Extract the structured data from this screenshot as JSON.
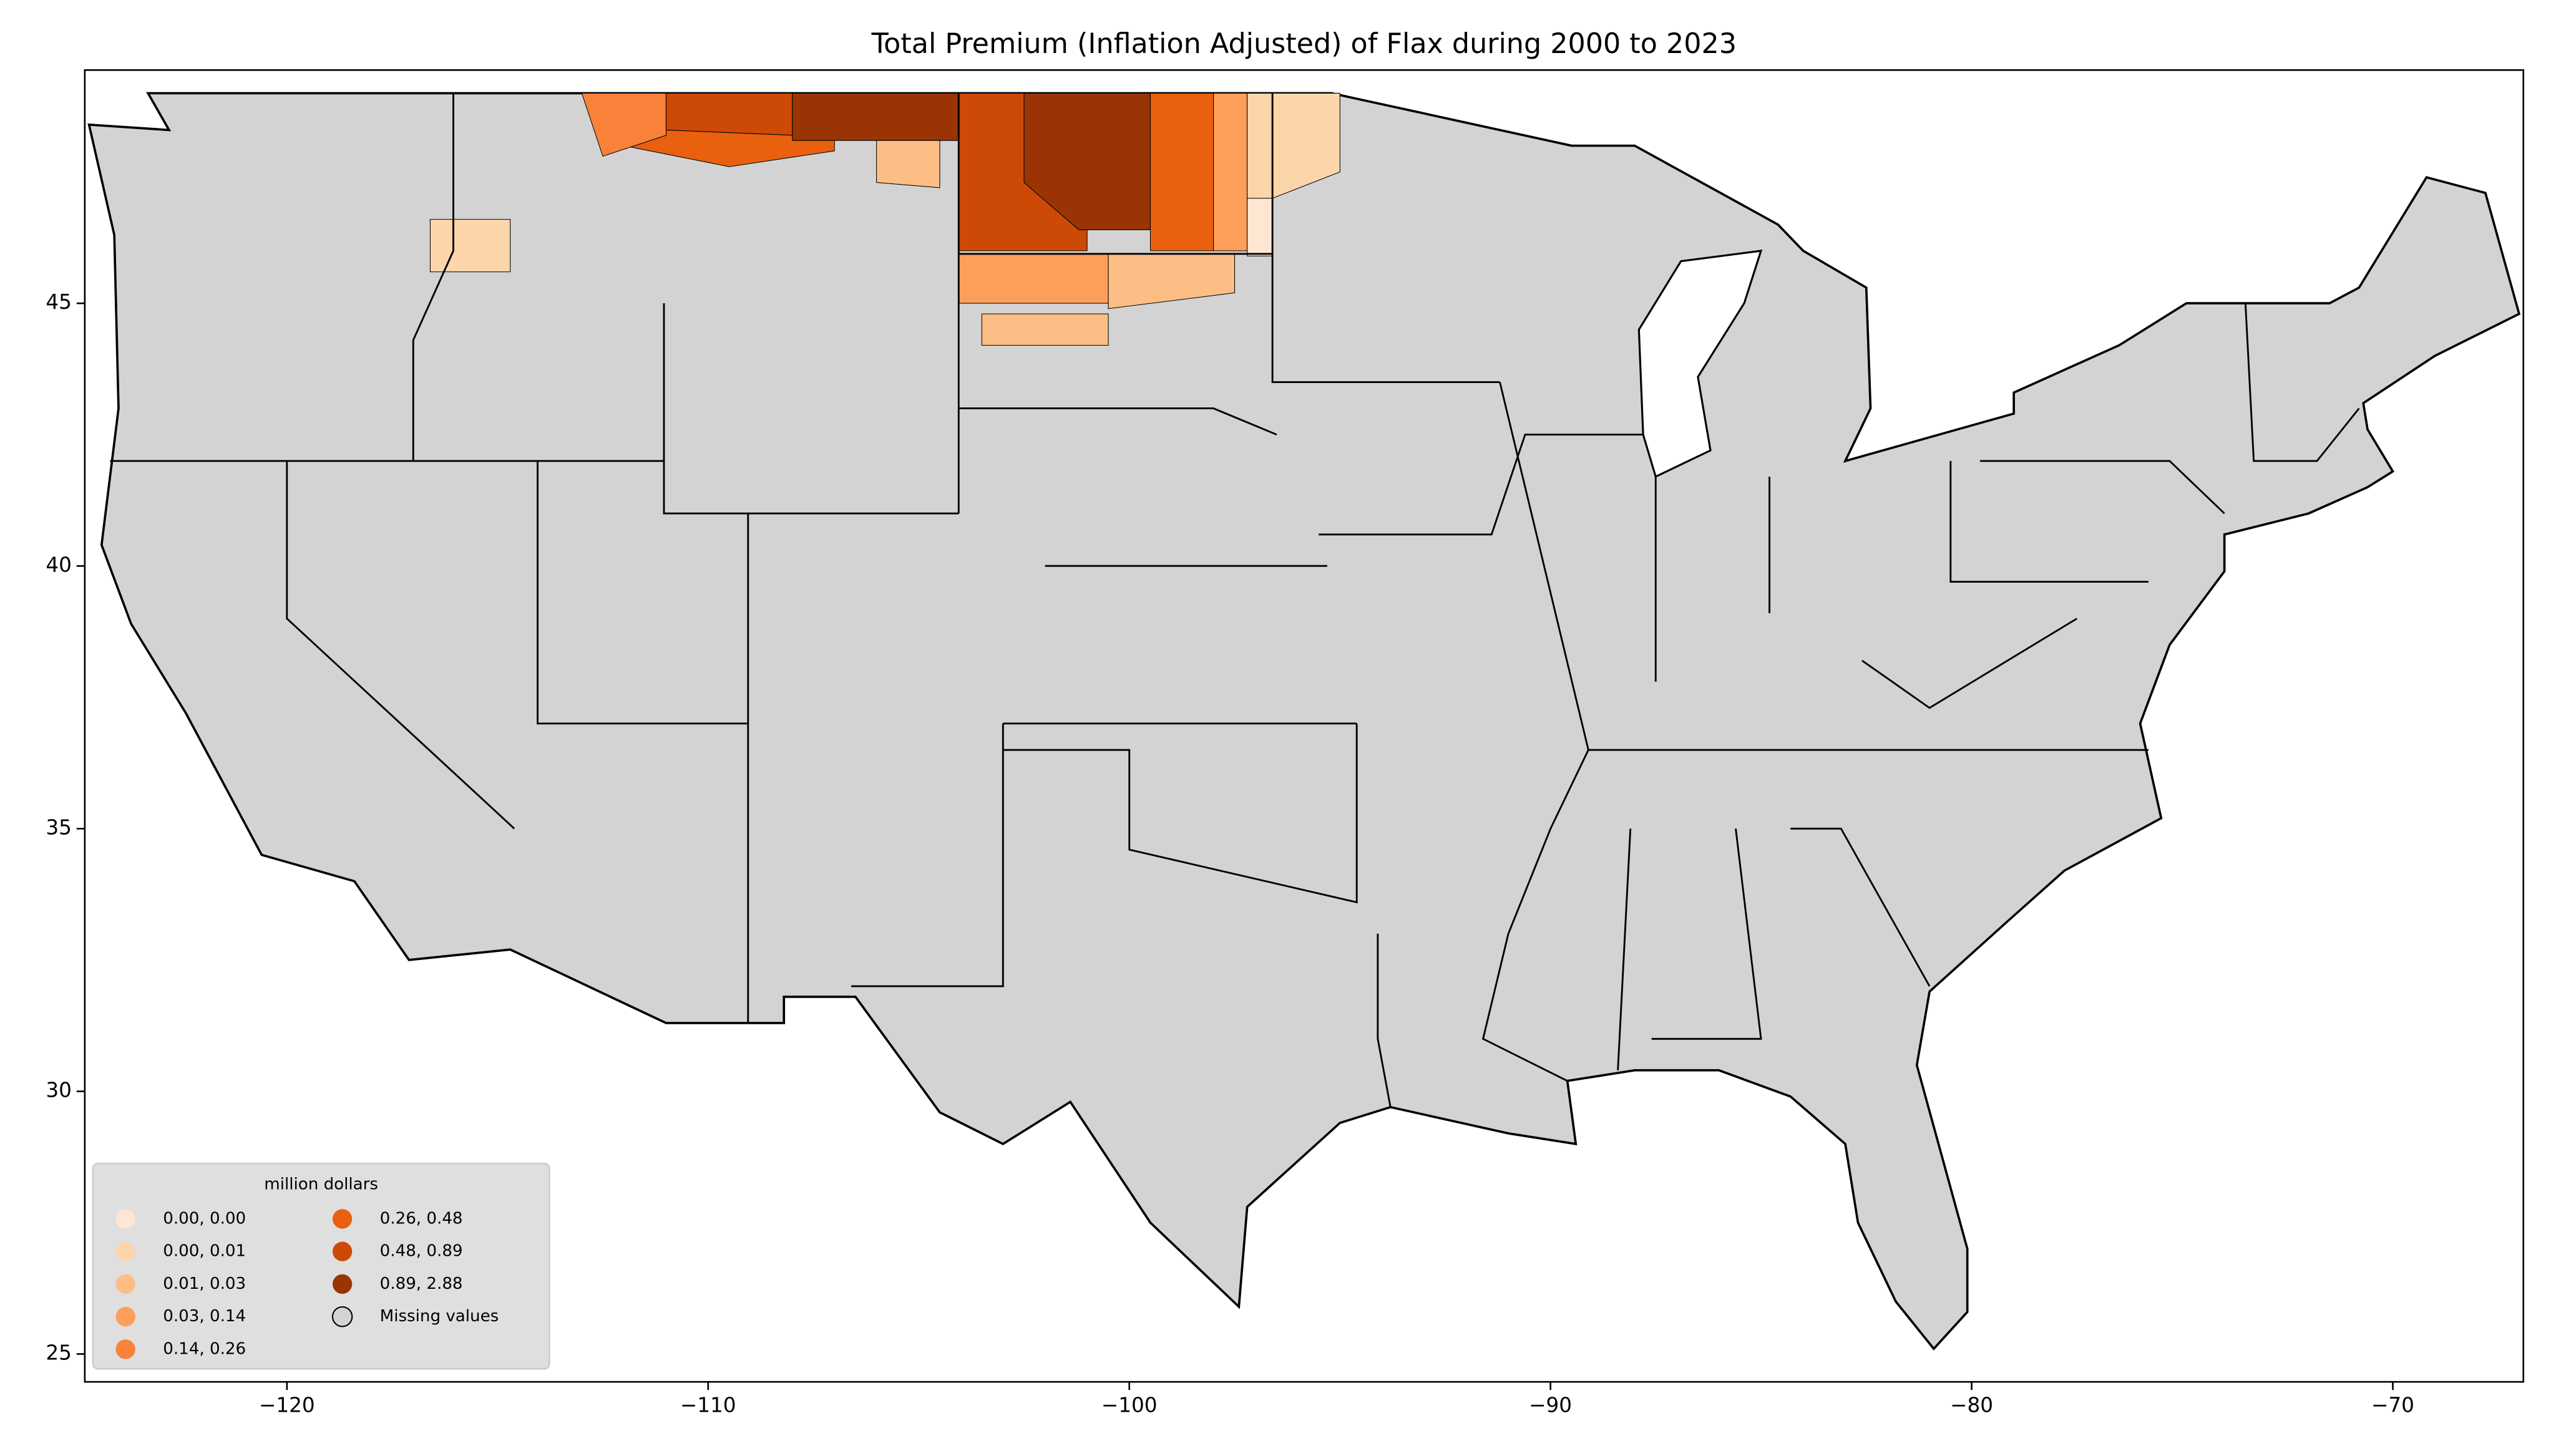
{
  "chart_data": {
    "type": "map",
    "title": "Total  Premium  (Inflation Adjusted) of Flax during 2000 to 2023",
    "xlim": [
      -124.8,
      -66.9
    ],
    "ylim": [
      24.47,
      49.44
    ],
    "xticks": [
      {
        "value": -120,
        "label": "−120"
      },
      {
        "value": -110,
        "label": "−110"
      },
      {
        "value": -100,
        "label": "−100"
      },
      {
        "value": -90,
        "label": "−90"
      },
      {
        "value": -80,
        "label": "−80"
      },
      {
        "value": -70,
        "label": "−70"
      }
    ],
    "yticks": [
      25,
      30,
      35,
      40,
      45
    ],
    "missing_color": "#d3d3d3",
    "legend": {
      "title": "million dollars",
      "items": [
        {
          "label": "0.00, 0.00",
          "color": "#fee6d3"
        },
        {
          "label": "0.00, 0.01",
          "color": "#fdd5ab"
        },
        {
          "label": "0.01, 0.03",
          "color": "#fdbe86"
        },
        {
          "label": "0.03, 0.14",
          "color": "#fd9e5b"
        },
        {
          "label": "0.14, 0.26",
          "color": "#f8823a"
        },
        {
          "label": "0.26, 0.48",
          "color": "#e9600f"
        },
        {
          "label": "0.48, 0.89",
          "color": "#cc4a05"
        },
        {
          "label": "0.89, 2.88",
          "color": "#9b3404"
        },
        {
          "label": "Missing values",
          "color": "#d3d3d3"
        }
      ]
    }
  }
}
